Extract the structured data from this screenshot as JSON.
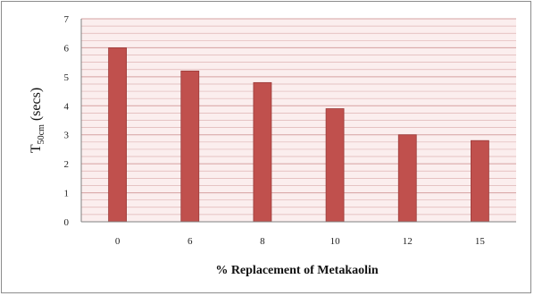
{
  "chart_data": {
    "type": "bar",
    "categories": [
      "0",
      "6",
      "8",
      "10",
      "12",
      "15"
    ],
    "values": [
      6.0,
      5.2,
      4.8,
      3.9,
      3.0,
      2.8
    ],
    "ylim": [
      0,
      7
    ],
    "yticks": [
      0,
      1,
      2,
      3,
      4,
      5,
      6,
      7
    ],
    "xlabel": "% Replacement of Metakaolin",
    "ylabel": {
      "main": "T",
      "subscript": "50cm",
      "suffix": " (secs)"
    },
    "grid": true,
    "legend": "none",
    "colors": {
      "bar": "#c0504d",
      "bar_edge": "#9b3b39",
      "plot_background": "#fbeeee",
      "gridline": "#d6a1a1",
      "axis": "#808080"
    }
  }
}
